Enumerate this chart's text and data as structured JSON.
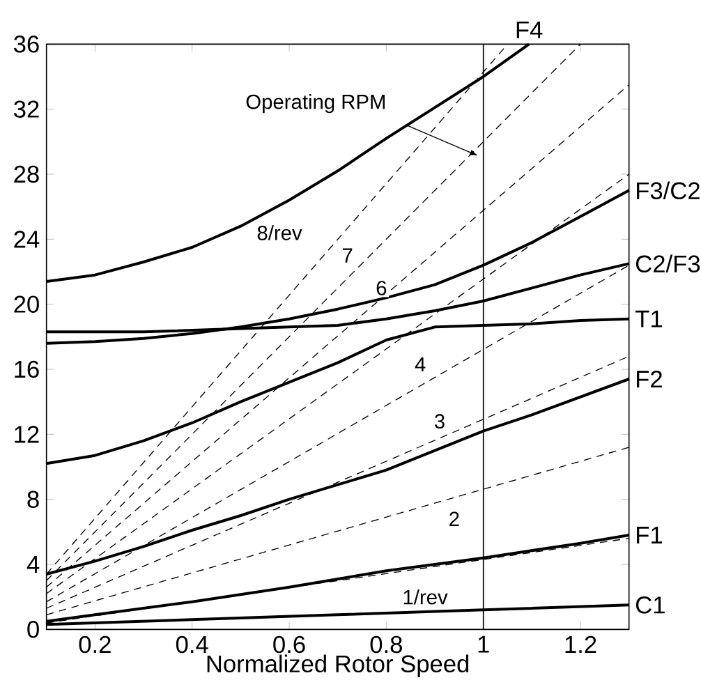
{
  "chart_data": {
    "type": "line",
    "xlabel": "Normalized Rotor Speed",
    "xlim": [
      0.1,
      1.3
    ],
    "ylim": [
      0,
      36
    ],
    "xticks": [
      0.2,
      0.4,
      0.6,
      0.8,
      1,
      1.2
    ],
    "yticks": [
      0,
      4,
      8,
      12,
      16,
      20,
      24,
      28,
      32,
      36
    ],
    "grid": false,
    "marker": "none",
    "series": [
      {
        "name": "F4",
        "color": "#000000",
        "line_style": "solid",
        "x": [
          0.1,
          0.2,
          0.3,
          0.4,
          0.5,
          0.6,
          0.7,
          0.8,
          0.9,
          1.0,
          1.094
        ],
        "values": [
          21.4,
          21.8,
          22.6,
          23.5,
          24.8,
          26.4,
          28.2,
          30.2,
          32.1,
          34.0,
          36
        ]
      },
      {
        "name": "F3/C2",
        "color": "#000000",
        "line_style": "solid",
        "x": [
          0.1,
          0.2,
          0.3,
          0.4,
          0.5,
          0.6,
          0.7,
          0.8,
          0.9,
          1.0,
          1.1,
          1.2,
          1.3
        ],
        "values": [
          17.6,
          17.7,
          17.9,
          18.2,
          18.6,
          19.1,
          19.7,
          20.4,
          21.2,
          22.4,
          23.8,
          25.4,
          27.0
        ]
      },
      {
        "name": "C2/F3",
        "color": "#000000",
        "line_style": "solid",
        "x": [
          0.1,
          0.2,
          0.3,
          0.4,
          0.5,
          0.6,
          0.7,
          0.8,
          0.9,
          1.0,
          1.1,
          1.2,
          1.3
        ],
        "values": [
          18.3,
          18.3,
          18.3,
          18.4,
          18.5,
          18.6,
          18.7,
          19.1,
          19.6,
          20.2,
          21.0,
          21.8,
          22.5
        ]
      },
      {
        "name": "T1",
        "color": "#000000",
        "line_style": "solid",
        "x": [
          0.1,
          0.2,
          0.3,
          0.4,
          0.5,
          0.6,
          0.7,
          0.8,
          0.9,
          1.0,
          1.1,
          1.2,
          1.3
        ],
        "values": [
          10.2,
          10.7,
          11.6,
          12.7,
          14.0,
          15.2,
          16.4,
          17.8,
          18.6,
          18.7,
          18.8,
          19.0,
          19.1
        ]
      },
      {
        "name": "F2",
        "color": "#000000",
        "line_style": "solid",
        "x": [
          0.1,
          0.2,
          0.3,
          0.4,
          0.5,
          0.6,
          0.7,
          0.8,
          0.9,
          1.0,
          1.1,
          1.2,
          1.3
        ],
        "values": [
          3.4,
          4.2,
          5.1,
          6.1,
          7.0,
          8.0,
          8.9,
          9.8,
          11.0,
          12.2,
          13.2,
          14.3,
          15.4
        ]
      },
      {
        "name": "F1",
        "color": "#000000",
        "line_style": "solid",
        "x": [
          0.1,
          0.2,
          0.4,
          0.6,
          0.8,
          1.0,
          1.2,
          1.3
        ],
        "values": [
          0.5,
          0.9,
          1.7,
          2.6,
          3.6,
          4.4,
          5.3,
          5.8
        ]
      },
      {
        "name": "C1",
        "color": "#000000",
        "line_style": "solid",
        "x": [
          0.1,
          0.4,
          0.7,
          1.0,
          1.3
        ],
        "values": [
          0.3,
          0.6,
          0.9,
          1.2,
          1.5
        ]
      },
      {
        "color": "#000000",
        "line_style": "dashed",
        "x": [
          0.1,
          1.3
        ],
        "values": [
          0.4,
          5.6
        ]
      },
      {
        "color": "#000000",
        "line_style": "dashed",
        "x": [
          0.1,
          1.3
        ],
        "values": [
          0.9,
          11.2
        ]
      },
      {
        "color": "#000000",
        "line_style": "dashed",
        "x": [
          0.1,
          1.3
        ],
        "values": [
          1.3,
          16.8
        ]
      },
      {
        "color": "#000000",
        "line_style": "dashed",
        "x": [
          0.1,
          1.3
        ],
        "values": [
          1.7,
          22.4
        ]
      },
      {
        "color": "#000000",
        "line_style": "dashed",
        "x": [
          0.1,
          1.3
        ],
        "values": [
          2.2,
          28.0
        ]
      },
      {
        "color": "#000000",
        "line_style": "dashed",
        "x": [
          0.1,
          1.3
        ],
        "values": [
          2.6,
          33.5
        ]
      },
      {
        "color": "#000000",
        "line_style": "dashed",
        "x": [
          0.1,
          1.2
        ],
        "values": [
          3.0,
          36
        ]
      },
      {
        "color": "#000000",
        "line_style": "dashed",
        "x": [
          0.1,
          1.05
        ],
        "values": [
          3.4,
          36
        ]
      }
    ],
    "ref_lines": [
      {
        "axis": "x",
        "value": 1,
        "label": "Operating RPM",
        "color": "#000000",
        "line_style": "solid"
      }
    ],
    "annotations": [
      {
        "text": "8/rev",
        "x": 0.58,
        "y": 24.4
      },
      {
        "text": "7",
        "x": 0.72,
        "y": 23.0
      },
      {
        "text": "6",
        "x": 0.79,
        "y": 21.0
      },
      {
        "text": "4",
        "x": 0.87,
        "y": 16.3
      },
      {
        "text": "3",
        "x": 0.91,
        "y": 12.8
      },
      {
        "text": "2",
        "x": 0.94,
        "y": 6.8
      },
      {
        "text": "1/rev",
        "x": 0.88,
        "y": 2.0
      }
    ]
  }
}
